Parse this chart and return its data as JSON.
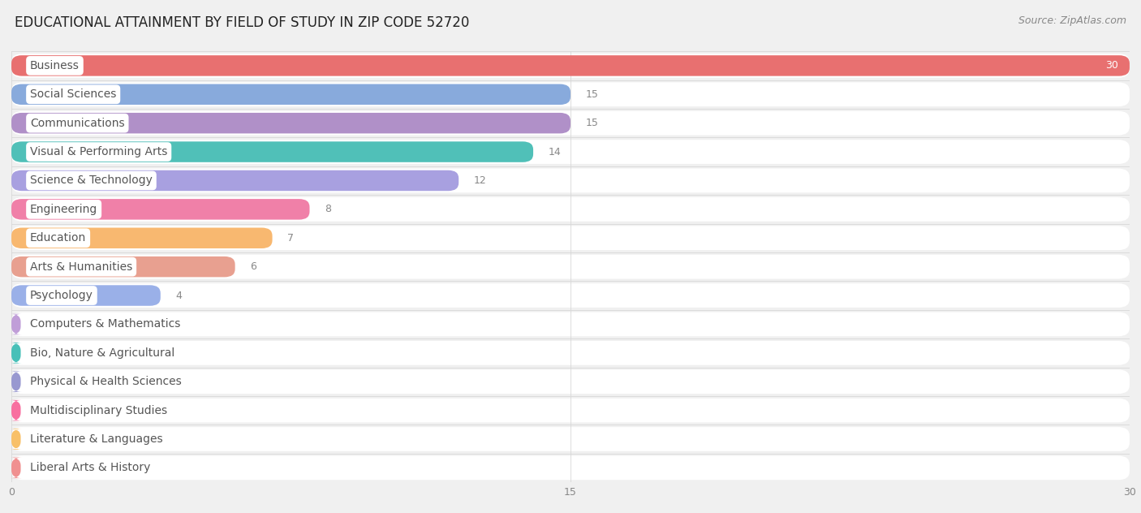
{
  "title": "EDUCATIONAL ATTAINMENT BY FIELD OF STUDY IN ZIP CODE 52720",
  "source": "Source: ZipAtlas.com",
  "categories": [
    "Business",
    "Social Sciences",
    "Communications",
    "Visual & Performing Arts",
    "Science & Technology",
    "Engineering",
    "Education",
    "Arts & Humanities",
    "Psychology",
    "Computers & Mathematics",
    "Bio, Nature & Agricultural",
    "Physical & Health Sciences",
    "Multidisciplinary Studies",
    "Literature & Languages",
    "Liberal Arts & History"
  ],
  "values": [
    30,
    15,
    15,
    14,
    12,
    8,
    7,
    6,
    4,
    0,
    0,
    0,
    0,
    0,
    0
  ],
  "bar_colors": [
    "#e87070",
    "#88aadc",
    "#b090c8",
    "#50c0b8",
    "#a8a0e0",
    "#f080a8",
    "#f8b870",
    "#e8a090",
    "#9ab0e8",
    "#c09ed8",
    "#48c0b8",
    "#9898d0",
    "#f870a0",
    "#f8c068",
    "#f09090"
  ],
  "xlim": [
    0,
    30
  ],
  "xticks": [
    0,
    15,
    30
  ],
  "background_color": "#f0f0f0",
  "row_color": "#ffffff",
  "pill_color": "#ffffff",
  "pill_text_color": "#555555",
  "value_color_inside": "#ffffff",
  "value_color_outside": "#888888",
  "title_fontsize": 12,
  "source_fontsize": 9,
  "label_fontsize": 10,
  "value_fontsize": 9,
  "tick_fontsize": 9
}
